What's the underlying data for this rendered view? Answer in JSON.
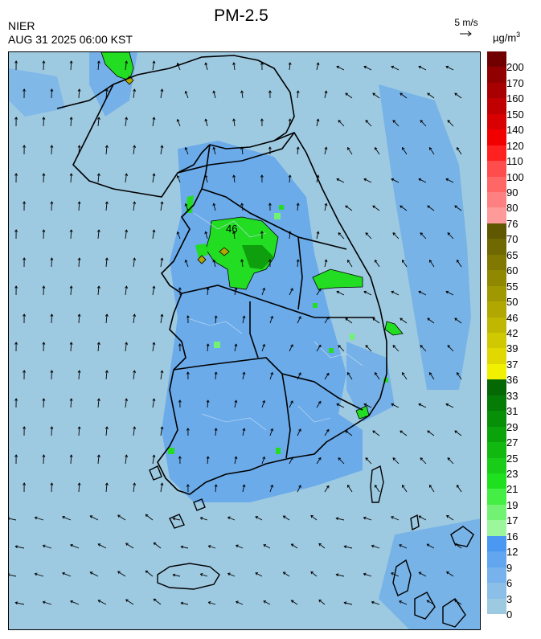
{
  "title": "PM-2.5",
  "agency": "NIER",
  "timestamp": "AUG 31 2025 06:00 KST",
  "wind_reference": {
    "label": "5 m/s"
  },
  "unit": {
    "base": "µg/m",
    "exp": "3"
  },
  "map_label": "46",
  "legend": {
    "labels": [
      "0",
      "3",
      "6",
      "9",
      "12",
      "16",
      "17",
      "19",
      "21",
      "23",
      "25",
      "27",
      "29",
      "31",
      "33",
      "36",
      "37",
      "39",
      "42",
      "46",
      "50",
      "55",
      "60",
      "65",
      "70",
      "76",
      "80",
      "90",
      "100",
      "110",
      "120",
      "140",
      "150",
      "160",
      "170",
      "200"
    ],
    "colors": [
      "#9ecae1",
      "#8bbfe8",
      "#78b2ec",
      "#62a6ef",
      "#4a98f2",
      "#9cf79c",
      "#72f272",
      "#44ee44",
      "#1fe01f",
      "#18cc18",
      "#10b810",
      "#0aa40a",
      "#079007",
      "#057c05",
      "#046804",
      "#f0f000",
      "#e0d800",
      "#d0c800",
      "#c0b800",
      "#b0a800",
      "#a09800",
      "#908800",
      "#807800",
      "#706800",
      "#605800",
      "#ff9a9a",
      "#ff8080",
      "#ff6666",
      "#ff4d4d",
      "#ff2020",
      "#f20000",
      "#d80000",
      "#c00000",
      "#a80000",
      "#900000",
      "#700000"
    ]
  },
  "colors": {
    "background": "#9ecae1",
    "moderate_blue": "#5aa0ec",
    "good_green": "#22dd22",
    "boundary": "#000000"
  }
}
